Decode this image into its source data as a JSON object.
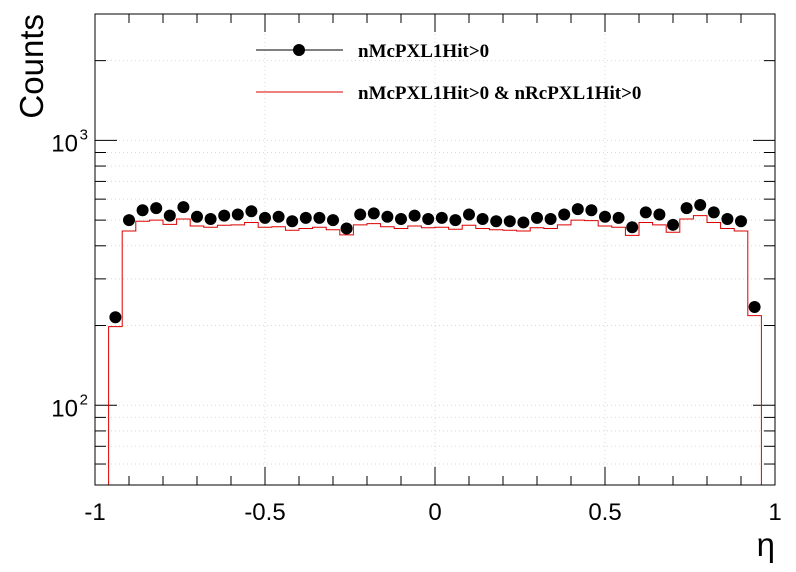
{
  "chart_data": {
    "type": "line",
    "title": "",
    "xlabel": "η",
    "ylabel": "Counts",
    "xlim": [
      -1,
      1
    ],
    "ylim": [
      50,
      3000
    ],
    "yscale": "log",
    "grid": true,
    "legend_position": "top-center",
    "x_tick_labels": [
      "-1",
      "-0.5",
      "0",
      "0.5",
      "1"
    ],
    "y_tick_labels": [
      {
        "base": "10",
        "exp": "2",
        "value": 100
      },
      {
        "base": "10",
        "exp": "3",
        "value": 1000
      }
    ],
    "bin_edges": [
      -0.96,
      -0.92,
      -0.88,
      -0.84,
      -0.8,
      -0.76,
      -0.72,
      -0.68,
      -0.64,
      -0.6,
      -0.56,
      -0.52,
      -0.48,
      -0.44,
      -0.4,
      -0.36,
      -0.32,
      -0.28,
      -0.24,
      -0.2,
      -0.16,
      -0.12,
      -0.08,
      -0.04,
      0.0,
      0.04,
      0.08,
      0.12,
      0.16,
      0.2,
      0.24,
      0.28,
      0.32,
      0.36,
      0.4,
      0.44,
      0.48,
      0.52,
      0.56,
      0.6,
      0.64,
      0.68,
      0.72,
      0.76,
      0.8,
      0.84,
      0.88,
      0.92,
      0.96
    ],
    "series": [
      {
        "name": "nMcPXL1Hit>0",
        "style": "markers",
        "color": "#000000",
        "x": [
          -0.94,
          -0.9,
          -0.86,
          -0.82,
          -0.78,
          -0.74,
          -0.7,
          -0.66,
          -0.62,
          -0.58,
          -0.54,
          -0.5,
          -0.46,
          -0.42,
          -0.38,
          -0.34,
          -0.3,
          -0.26,
          -0.22,
          -0.18,
          -0.14,
          -0.1,
          -0.06,
          -0.02,
          0.02,
          0.06,
          0.1,
          0.14,
          0.18,
          0.22,
          0.26,
          0.3,
          0.34,
          0.38,
          0.42,
          0.46,
          0.5,
          0.54,
          0.58,
          0.62,
          0.66,
          0.7,
          0.74,
          0.78,
          0.82,
          0.86,
          0.9,
          0.94
        ],
        "values": [
          215,
          500,
          545,
          555,
          520,
          560,
          515,
          505,
          520,
          525,
          540,
          510,
          515,
          495,
          510,
          510,
          500,
          465,
          525,
          530,
          515,
          505,
          520,
          505,
          510,
          500,
          525,
          505,
          495,
          495,
          490,
          510,
          505,
          525,
          550,
          545,
          515,
          510,
          470,
          535,
          525,
          480,
          555,
          570,
          535,
          505,
          495,
          235
        ]
      },
      {
        "name": "nMcPXL1Hit>0 & nRcPXL1Hit>0",
        "style": "step",
        "color": "#dd0000",
        "values": [
          198,
          455,
          495,
          500,
          482,
          505,
          475,
          470,
          478,
          480,
          490,
          470,
          472,
          458,
          465,
          470,
          460,
          440,
          480,
          485,
          472,
          465,
          475,
          468,
          470,
          462,
          478,
          465,
          460,
          458,
          455,
          468,
          465,
          480,
          500,
          498,
          475,
          470,
          438,
          490,
          480,
          450,
          505,
          520,
          490,
          465,
          455,
          218
        ]
      }
    ]
  }
}
